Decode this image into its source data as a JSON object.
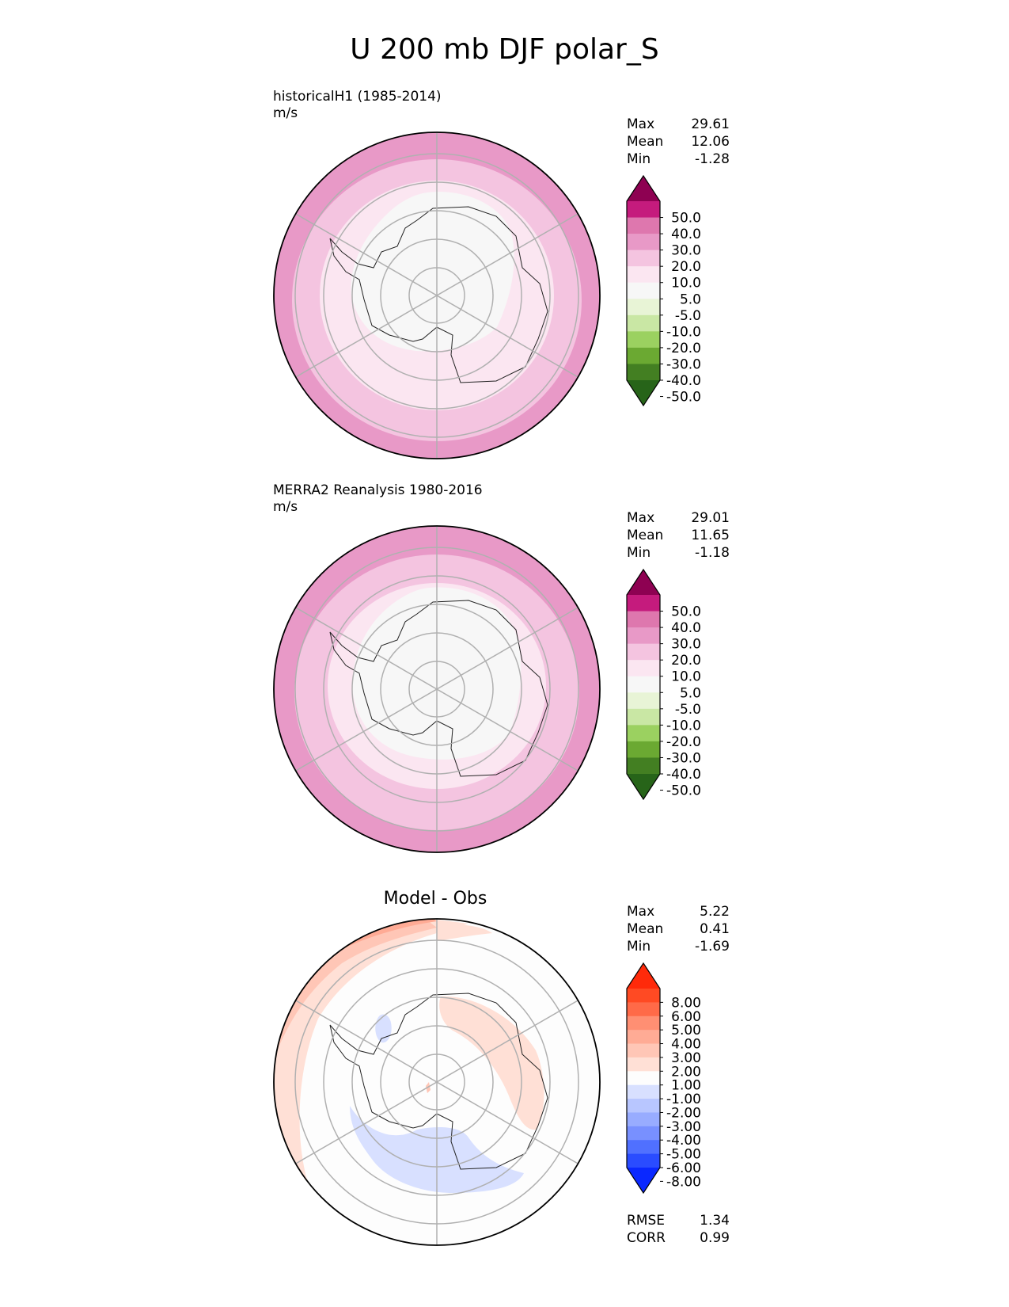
{
  "title": "U 200 mb DJF polar_S",
  "panels": [
    {
      "id": "model",
      "title": "historicalH1 (1985-2014)",
      "units": "m/s",
      "stats": {
        "max_label": "Max",
        "max": "29.61",
        "mean_label": "Mean",
        "mean": "12.06",
        "min_label": "Min",
        "min": "-1.28"
      },
      "colorbar": {
        "levels": [
          "50.0",
          "40.0",
          "30.0",
          "20.0",
          "10.0",
          "5.0",
          "-5.0",
          "-10.0",
          "-20.0",
          "-30.0",
          "-40.0",
          "-50.0"
        ],
        "colors": [
          "#8e0152",
          "#c51b7d",
          "#de77ae",
          "#e899c7",
          "#f4c4e0",
          "#fbe6f1",
          "#f7f7f7",
          "#e8f4d6",
          "#c9e7a4",
          "#9bd160",
          "#6ba932",
          "#437f22",
          "#276419"
        ]
      }
    },
    {
      "id": "obs",
      "title": "MERRA2 Reanalysis 1980-2016",
      "units": "m/s",
      "stats": {
        "max_label": "Max",
        "max": "29.01",
        "mean_label": "Mean",
        "mean": "11.65",
        "min_label": "Min",
        "min": "-1.18"
      },
      "colorbar": {
        "levels": [
          "50.0",
          "40.0",
          "30.0",
          "20.0",
          "10.0",
          "5.0",
          "-5.0",
          "-10.0",
          "-20.0",
          "-30.0",
          "-40.0",
          "-50.0"
        ],
        "colors": [
          "#8e0152",
          "#c51b7d",
          "#de77ae",
          "#e899c7",
          "#f4c4e0",
          "#fbe6f1",
          "#f7f7f7",
          "#e8f4d6",
          "#c9e7a4",
          "#9bd160",
          "#6ba932",
          "#437f22",
          "#276419"
        ]
      }
    },
    {
      "id": "diff",
      "title": "Model - Obs",
      "stats": {
        "max_label": "Max",
        "max": "5.22",
        "mean_label": "Mean",
        "mean": "0.41",
        "min_label": "Min",
        "min": "-1.69"
      },
      "metrics": {
        "rmse_label": "RMSE",
        "rmse": "1.34",
        "corr_label": "CORR",
        "corr": "0.99"
      },
      "colorbar": {
        "levels": [
          "8.00",
          "6.00",
          "5.00",
          "4.00",
          "3.00",
          "2.00",
          "1.00",
          "-1.00",
          "-2.00",
          "-3.00",
          "-4.00",
          "-5.00",
          "-6.00",
          "-8.00"
        ],
        "colors": [
          "#ff2a0a",
          "#ff4a23",
          "#ff6a48",
          "#ff8f73",
          "#ffab95",
          "#ffc6b6",
          "#ffe0d6",
          "#fdfdfd",
          "#d8e0ff",
          "#b8c6ff",
          "#98acff",
          "#7890ff",
          "#5070ff",
          "#2a4cff",
          "#0a28ff"
        ]
      }
    }
  ]
}
